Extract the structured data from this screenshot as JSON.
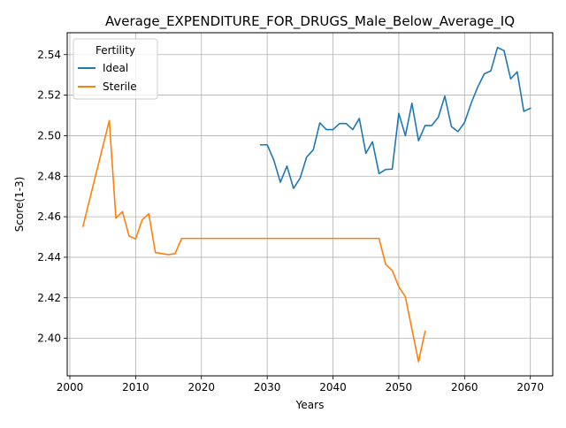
{
  "chart_data": {
    "type": "line",
    "title": "Average_EXPENDITURE_FOR_DRUGS_Male_Below_Average_IQ",
    "xlabel": "Years",
    "ylabel": "Score(1-3)",
    "xlim": [
      1999.6,
      2073.4
    ],
    "ylim": [
      2.3815,
      2.5508
    ],
    "xticks": [
      2000,
      2010,
      2020,
      2030,
      2040,
      2050,
      2060,
      2070
    ],
    "yticks": [
      2.4,
      2.42,
      2.44,
      2.46,
      2.48,
      2.5,
      2.52,
      2.54
    ],
    "grid": true,
    "legend": {
      "title": "Fertility",
      "placement": "upper left"
    },
    "series": [
      {
        "name": "Ideal",
        "color": "#1f77b4",
        "points": [
          [
            2029,
            2.4955
          ],
          [
            2030,
            2.4955
          ],
          [
            2031,
            2.488
          ],
          [
            2032,
            2.477
          ],
          [
            2033,
            2.485
          ],
          [
            2034,
            2.474
          ],
          [
            2035,
            2.479
          ],
          [
            2036,
            2.4895
          ],
          [
            2037,
            2.493
          ],
          [
            2038,
            2.5063
          ],
          [
            2039,
            2.503
          ],
          [
            2040,
            2.503
          ],
          [
            2041,
            2.506
          ],
          [
            2042,
            2.506
          ],
          [
            2043,
            2.503
          ],
          [
            2044,
            2.5085
          ],
          [
            2045,
            2.4913
          ],
          [
            2046,
            2.497
          ],
          [
            2047,
            2.4813
          ],
          [
            2048,
            2.4833
          ],
          [
            2049,
            2.4835
          ],
          [
            2050,
            2.511
          ],
          [
            2051,
            2.5
          ],
          [
            2052,
            2.516
          ],
          [
            2053,
            2.4975
          ],
          [
            2054,
            2.505
          ],
          [
            2055,
            2.505
          ],
          [
            2056,
            2.509
          ],
          [
            2057,
            2.5195
          ],
          [
            2058,
            2.5045
          ],
          [
            2059,
            2.502
          ],
          [
            2060,
            2.5065
          ],
          [
            2061,
            2.516
          ],
          [
            2062,
            2.524
          ],
          [
            2063,
            2.5305
          ],
          [
            2064,
            2.532
          ],
          [
            2065,
            2.5435
          ],
          [
            2066,
            2.542
          ],
          [
            2067,
            2.528
          ],
          [
            2068,
            2.5315
          ],
          [
            2069,
            2.512
          ],
          [
            2070,
            2.5135
          ]
        ]
      },
      {
        "name": "Sterile",
        "color": "#ff7f0e",
        "points": [
          [
            2002,
            2.4553
          ],
          [
            2006,
            2.5075
          ],
          [
            2007,
            2.4593
          ],
          [
            2008,
            2.4625
          ],
          [
            2009,
            2.4505
          ],
          [
            2010,
            2.449
          ],
          [
            2011,
            2.4585
          ],
          [
            2012,
            2.4615
          ],
          [
            2013,
            2.4423
          ],
          [
            2015,
            2.4413
          ],
          [
            2016,
            2.4418
          ],
          [
            2017,
            2.4493
          ],
          [
            2047,
            2.4493
          ],
          [
            2048,
            2.4365
          ],
          [
            2049,
            2.4335
          ],
          [
            2050,
            2.4255
          ],
          [
            2051,
            2.4205
          ],
          [
            2052,
            2.4045
          ],
          [
            2053,
            2.3885
          ],
          [
            2054,
            2.4035
          ]
        ]
      }
    ]
  }
}
